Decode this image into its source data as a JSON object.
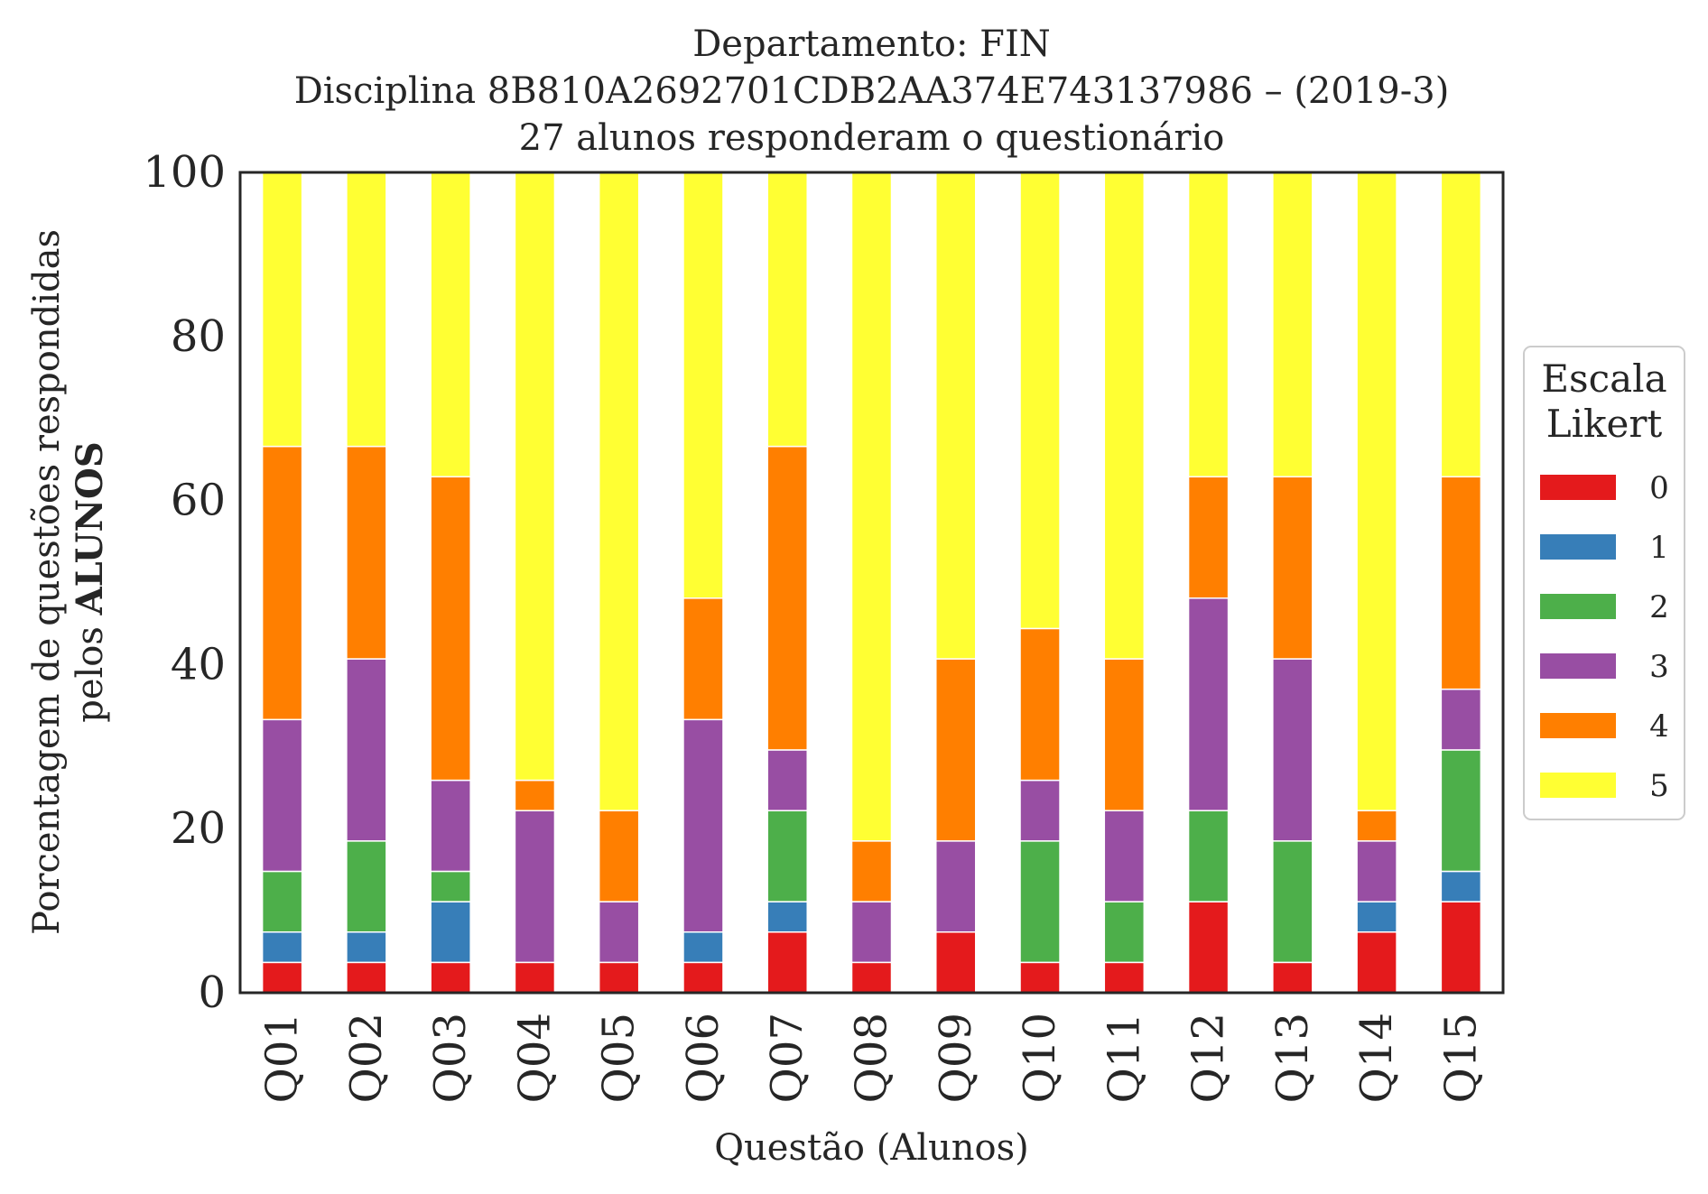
{
  "chart_data": {
    "type": "bar",
    "stacked": true,
    "title_lines": [
      "Departamento: FIN",
      "Disciplina 8B810A2692701CDB2AA374E743137986 – (2019-3)",
      "27 alunos responderam o questionário"
    ],
    "xlabel": "Questão (Alunos)",
    "ylabel_line1": "Porcentagem de questões respondidas",
    "ylabel_line2_prefix": "pelos ",
    "ylabel_line2_bold": "ALUNOS",
    "ylim": [
      0,
      100
    ],
    "yticks": [
      "0",
      "20",
      "40",
      "60",
      "80",
      "100"
    ],
    "grid": false,
    "legend_placement": "right",
    "legend_title_lines": [
      "Escala",
      "Likert"
    ],
    "categories": [
      "Q01",
      "Q02",
      "Q03",
      "Q04",
      "Q05",
      "Q06",
      "Q07",
      "Q08",
      "Q09",
      "Q10",
      "Q11",
      "Q12",
      "Q13",
      "Q14",
      "Q15"
    ],
    "series": [
      {
        "name": "0",
        "color": "#e41a1c",
        "values": [
          3.7,
          3.7,
          3.7,
          3.7,
          3.7,
          3.7,
          7.4,
          3.7,
          7.4,
          3.7,
          3.7,
          11.1,
          3.7,
          7.4,
          11.1
        ]
      },
      {
        "name": "1",
        "color": "#377eb8",
        "values": [
          3.7,
          3.7,
          7.4,
          0,
          0,
          3.7,
          3.7,
          0,
          0,
          0,
          0,
          0,
          0,
          3.7,
          3.7
        ]
      },
      {
        "name": "2",
        "color": "#4daf4a",
        "values": [
          7.4,
          11.1,
          3.7,
          0,
          0,
          0,
          11.1,
          0,
          0,
          14.8,
          7.4,
          11.1,
          14.8,
          0,
          14.8
        ]
      },
      {
        "name": "3",
        "color": "#984ea3",
        "values": [
          18.5,
          22.2,
          11.1,
          18.5,
          7.4,
          25.9,
          7.4,
          7.4,
          11.1,
          7.4,
          11.1,
          25.9,
          22.2,
          7.4,
          7.4
        ]
      },
      {
        "name": "4",
        "color": "#ff7f00",
        "values": [
          33.3,
          25.9,
          37.0,
          3.7,
          11.1,
          14.8,
          37.0,
          7.4,
          22.2,
          18.5,
          18.5,
          14.8,
          22.2,
          3.7,
          25.9
        ]
      },
      {
        "name": "5",
        "color": "#ffff33",
        "values": [
          33.4,
          33.4,
          37.1,
          74.1,
          77.8,
          51.9,
          33.4,
          81.5,
          59.3,
          55.6,
          59.3,
          37.1,
          37.1,
          77.8,
          37.1
        ]
      }
    ]
  }
}
